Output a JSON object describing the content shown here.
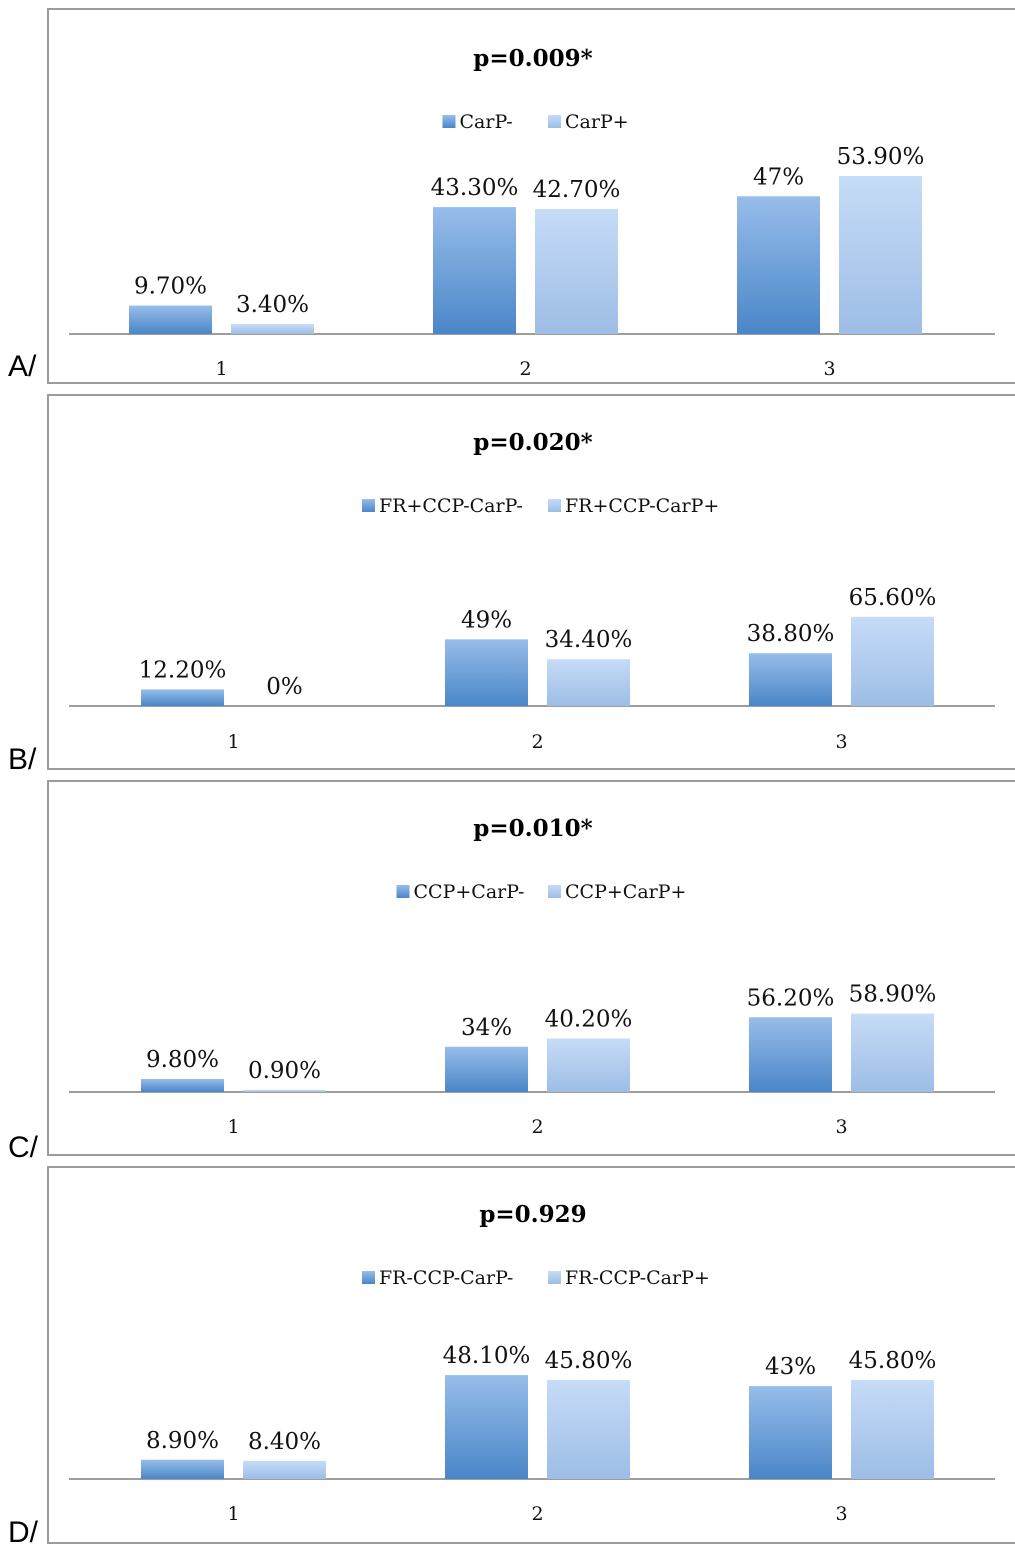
{
  "colors": {
    "series1": "#4a86c8",
    "series2": "#aac9ef",
    "axis": "#7f7f7f",
    "frame": "#9b9b9b"
  },
  "chart_data": [
    {
      "type": "bar",
      "panel_label": "A/",
      "title": "p=0.009*",
      "categories": [
        "1",
        "2",
        "3"
      ],
      "series": [
        {
          "name": "CarP-",
          "values": [
            9.7,
            43.3,
            47
          ],
          "labels": [
            "9.70%",
            "43.30%",
            "47%"
          ]
        },
        {
          "name": "CarP+",
          "values": [
            3.4,
            42.7,
            53.9
          ],
          "labels": [
            "3.40%",
            "42.70%",
            "53.90%"
          ]
        }
      ],
      "legend": "top-center",
      "grid": false
    },
    {
      "type": "bar",
      "panel_label": "B/",
      "title": "p=0.020*",
      "categories": [
        "1",
        "2",
        "3"
      ],
      "series": [
        {
          "name": "FR+CCP-CarP-",
          "values": [
            12.2,
            49,
            38.8
          ],
          "labels": [
            "12.20%",
            "49%",
            "38.80%"
          ]
        },
        {
          "name": "FR+CCP-CarP+",
          "values": [
            0,
            34.4,
            65.6
          ],
          "labels": [
            "0%",
            "34.40%",
            "65.60%"
          ]
        }
      ],
      "legend": "top-center",
      "grid": false
    },
    {
      "type": "bar",
      "panel_label": "C/",
      "title": "p=0.010*",
      "categories": [
        "1",
        "2",
        "3"
      ],
      "series": [
        {
          "name": "CCP+CarP-",
          "values": [
            9.8,
            34,
            56.2
          ],
          "labels": [
            "9.80%",
            "34%",
            "56.20%"
          ]
        },
        {
          "name": "CCP+CarP+",
          "values": [
            0.9,
            40.2,
            58.9
          ],
          "labels": [
            "0.90%",
            "40.20%",
            "58.90%"
          ]
        }
      ],
      "legend": "top-center",
      "grid": false
    },
    {
      "type": "bar",
      "panel_label": "D/",
      "title": "p=0.929",
      "categories": [
        "1",
        "2",
        "3"
      ],
      "series": [
        {
          "name": "FR-CCP-CarP-",
          "values": [
            8.9,
            48.1,
            43
          ],
          "labels": [
            "8.90%",
            "48.10%",
            "43%"
          ]
        },
        {
          "name": "FR-CCP-CarP+",
          "values": [
            8.4,
            45.8,
            45.8
          ],
          "labels": [
            "8.40%",
            "45.80%",
            "45.80%"
          ]
        }
      ],
      "legend": "top-center",
      "grid": false
    }
  ]
}
